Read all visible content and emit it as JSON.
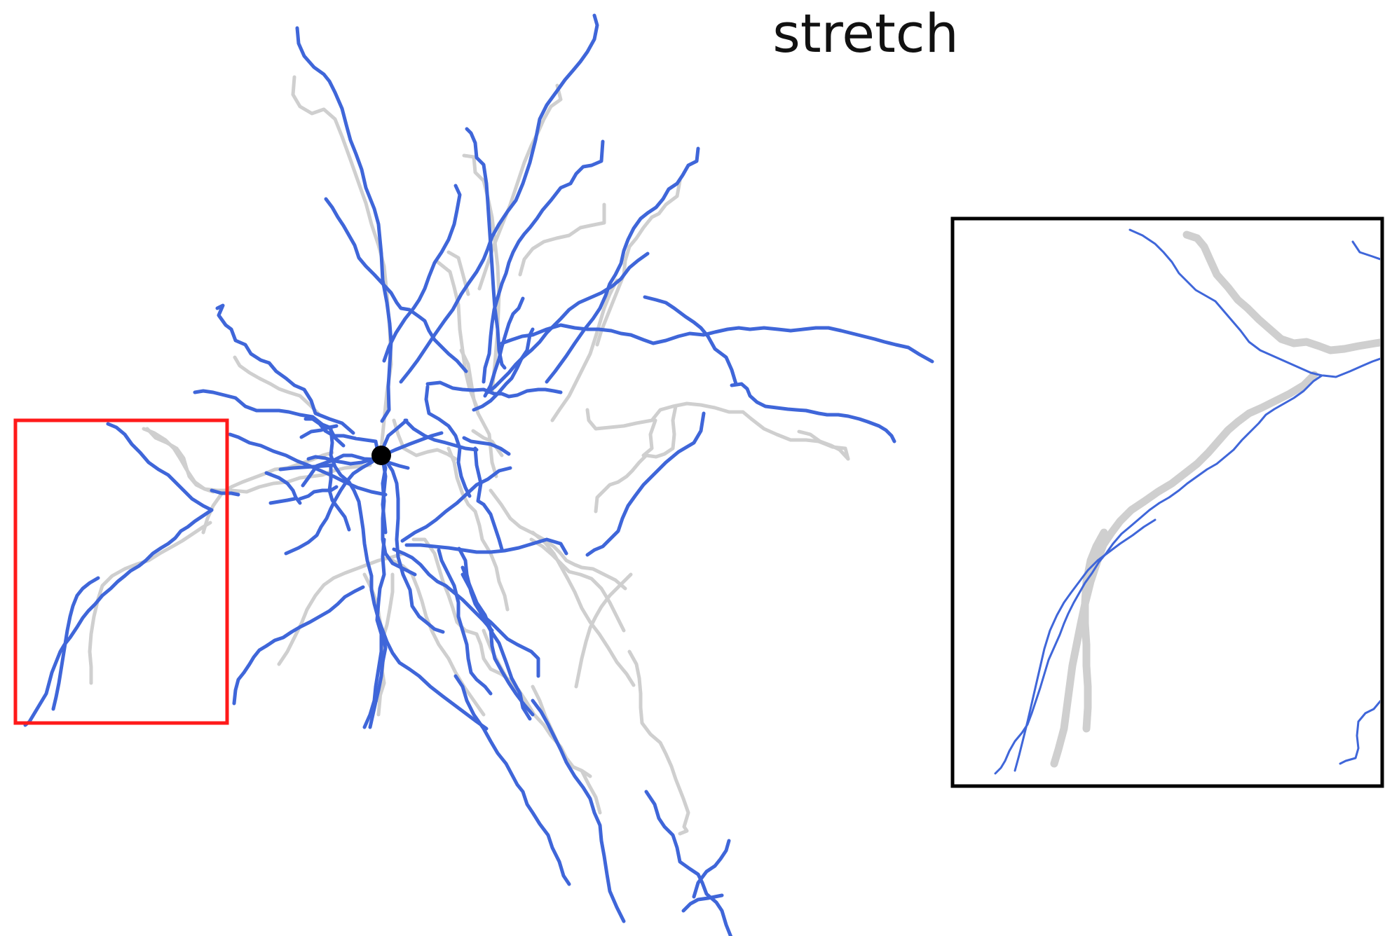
{
  "title": "stretch",
  "colors": {
    "deformed_trace": "#3f66d9",
    "original_trace": "#cfcfcf",
    "soma": "#000000",
    "region_box": "#ff1a1a",
    "inset_frame": "#000000"
  }
}
